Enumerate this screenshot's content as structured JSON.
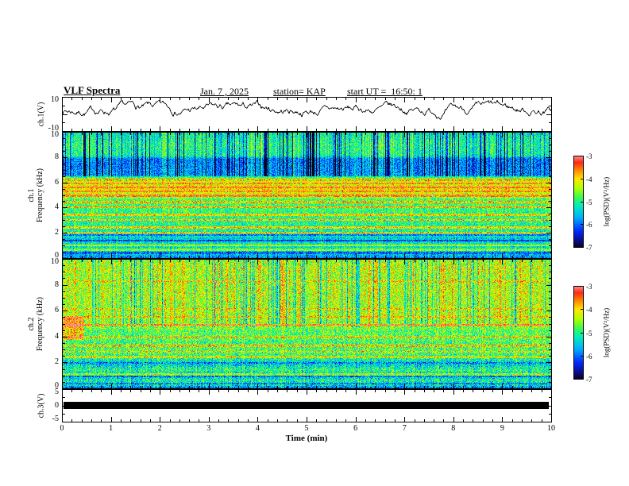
{
  "header": {
    "title": "VLF Spectra",
    "date": "Jan. 7 , 2025",
    "station": "station= KAP",
    "start_ut": "start UT =  16:50: 1"
  },
  "labels": {
    "ch1_voltage": "ch.1(V)",
    "ch1_channel": "ch.1",
    "ch2_channel": "ch.2",
    "frequency": "Frequency (kHz)",
    "ch3_voltage": "ch.3(V)",
    "time_axis": "Time (min)",
    "colorbar": "log(PSD)(V²/Hz)"
  },
  "axes": {
    "x_tick_labels": [
      "0",
      "1",
      "2",
      "3",
      "4",
      "5",
      "6",
      "7",
      "8",
      "9",
      "10"
    ],
    "wave1_tick_labels": [
      {
        "v": 10,
        "t": "10"
      },
      {
        "v": -10,
        "t": "-10"
      }
    ],
    "spec_tick_labels": [
      {
        "v": 10,
        "t": "10"
      },
      {
        "v": 8,
        "t": "8"
      },
      {
        "v": 6,
        "t": "6"
      },
      {
        "v": 4,
        "t": "4"
      },
      {
        "v": 2,
        "t": "2"
      },
      {
        "v": 0,
        "t": "0"
      }
    ],
    "wave3_tick_labels": [
      {
        "v": 5,
        "t": "5"
      },
      {
        "v": 0,
        "t": "0"
      },
      {
        "v": -5,
        "t": "-5"
      }
    ],
    "colorbar_tick_labels": [
      {
        "v": -3,
        "t": "-3"
      },
      {
        "v": -4,
        "t": "-4"
      },
      {
        "v": -5,
        "t": "-5"
      },
      {
        "v": -6,
        "t": "-6"
      },
      {
        "v": -7,
        "t": "-7"
      }
    ]
  },
  "colors": {
    "foreground": "#000000",
    "background": "#ffffff",
    "colormap_low": "#050519",
    "colormap_mid": "#1efa50",
    "colormap_high": "#ff8c8c"
  },
  "chart_data": [
    {
      "type": "line",
      "name": "ch1_voltage_waveform",
      "ylabel": "ch.1(V)",
      "xlim": [
        0,
        10
      ],
      "ylim": [
        -10,
        10
      ],
      "y_ticks": [
        {
          "v": 10,
          "major": true
        },
        {
          "v": 5
        },
        {
          "v": 0,
          "major": true
        },
        {
          "v": -5
        },
        {
          "v": -10,
          "major": true
        }
      ],
      "signal": {
        "seed": 7,
        "mean": 2.2,
        "spread": 2.6,
        "clamp": [
          -5,
          8
        ]
      },
      "description": "Noisy broadband voltage trace fluctuating around +2 V over the 10 minute record"
    },
    {
      "type": "heatmap",
      "name": "ch1_spectrogram",
      "ylabel": "ch.1 Frequency (kHz)",
      "xlim": [
        0,
        10
      ],
      "ylim": [
        0,
        10
      ],
      "value_range": [
        -7,
        -3
      ],
      "y_minor_step": 0.5,
      "y_major_step": 2,
      "seed": 42,
      "noise": 0.55,
      "band_profile": [
        [
          0,
          -6.4
        ],
        [
          0.2,
          -5.7
        ],
        [
          0.8,
          -5.3
        ],
        [
          1.2,
          -5.2
        ],
        [
          1.6,
          -5.5
        ],
        [
          2,
          -5.15
        ],
        [
          3,
          -5.0
        ],
        [
          4,
          -4.9
        ],
        [
          4.7,
          -4.85
        ],
        [
          5,
          -4.3
        ],
        [
          5.6,
          -4.0
        ],
        [
          6.1,
          -4.3
        ],
        [
          6.45,
          -4.9
        ],
        [
          6.6,
          -5.8
        ],
        [
          7.9,
          -5.9
        ],
        [
          8.15,
          -5.1
        ],
        [
          9,
          -5.0
        ],
        [
          10,
          -5.25
        ]
      ],
      "bright_lines": [
        {
          "f": 0.75,
          "v": -4.6
        },
        {
          "f": 1.1,
          "v": -4.4
        },
        {
          "f": 2.1,
          "v": -3.9
        },
        {
          "f": 2.5,
          "v": -4.0
        },
        {
          "f": 3.1,
          "v": -3.9
        },
        {
          "f": 3.5,
          "v": -4.0
        },
        {
          "f": 4.1,
          "v": -3.8
        },
        {
          "f": 4.5,
          "v": -3.9
        },
        {
          "f": 5.0,
          "v": -3.5
        },
        {
          "f": 5.35,
          "v": -3.6
        },
        {
          "f": 5.65,
          "v": -3.4
        },
        {
          "f": 5.95,
          "v": -3.6
        },
        {
          "f": 6.25,
          "v": -3.9
        }
      ],
      "dark_lines": [
        {
          "f": 0.5,
          "v": -6.0
        },
        {
          "f": 1.45,
          "v": -6.2
        },
        {
          "f": 1.9,
          "v": -5.9
        }
      ],
      "streak_zone": [
        6.55,
        10
      ],
      "streak_amp": 1.0,
      "colorbar": {
        "label": "log(PSD)(V²/Hz)",
        "ticks": [
          -3,
          -4,
          -5,
          -6,
          -7
        ],
        "range": [
          -3,
          -7
        ]
      }
    },
    {
      "type": "heatmap",
      "name": "ch2_spectrogram",
      "ylabel": "ch.2 Frequency (kHz)",
      "xlim": [
        0,
        10
      ],
      "ylim": [
        0,
        10
      ],
      "value_range": [
        -7,
        -3
      ],
      "y_minor_step": 0.5,
      "y_major_step": 2,
      "seed": 1337,
      "noise": 0.7,
      "band_profile": [
        [
          0,
          -6.4
        ],
        [
          0.3,
          -5.4
        ],
        [
          0.7,
          -5.1
        ],
        [
          1,
          -5.5
        ],
        [
          1.5,
          -5.0
        ],
        [
          2,
          -5.5
        ],
        [
          2.4,
          -5.0
        ],
        [
          3,
          -4.8
        ],
        [
          3.6,
          -4.9
        ],
        [
          4,
          -4.7
        ],
        [
          4.5,
          -4.8
        ],
        [
          4.9,
          -4.35
        ],
        [
          5.2,
          -4.45
        ],
        [
          5.6,
          -4.3
        ],
        [
          6.5,
          -4.4
        ],
        [
          7.5,
          -4.3
        ],
        [
          8.5,
          -4.4
        ],
        [
          9.2,
          -4.25
        ],
        [
          10,
          -4.45
        ]
      ],
      "bright_lines": [
        {
          "f": 1.15,
          "v": -4.5
        },
        {
          "f": 2.5,
          "v": -4.2
        },
        {
          "f": 2.9,
          "v": -4.1
        },
        {
          "f": 3.35,
          "v": -3.9
        },
        {
          "f": 4.0,
          "v": -3.9
        },
        {
          "f": 4.95,
          "v": -3.35
        },
        {
          "f": 5.6,
          "v": -3.9
        },
        {
          "f": 6.2,
          "v": -4.0
        },
        {
          "f": 8.3,
          "v": -4.0
        }
      ],
      "dark_lines": [
        {
          "f": 0.45,
          "v": -5.8
        },
        {
          "f": 1.0,
          "v": -5.9
        },
        {
          "f": 2.05,
          "v": -5.8
        }
      ],
      "streak_zone": [
        4.8,
        10
      ],
      "streak_amp": 0.7,
      "hotspot": {
        "x": [
          0,
          0.45
        ],
        "f": [
          3.8,
          5.6
        ],
        "boost": 1.15
      },
      "colorbar": {
        "label": "log(PSD)(V²/Hz)",
        "ticks": [
          -3,
          -4,
          -5,
          -6,
          -7
        ],
        "range": [
          -3,
          -7
        ]
      }
    },
    {
      "type": "line",
      "name": "ch3_voltage_waveform",
      "ylabel": "ch.3(V)",
      "xlim": [
        0,
        10
      ],
      "ylim": [
        -5,
        5
      ],
      "y_ticks": [
        {
          "v": 5,
          "major": true
        },
        {
          "v": 2.5
        },
        {
          "v": 0,
          "major": true
        },
        {
          "v": -2.5
        },
        {
          "v": -5,
          "major": true
        }
      ],
      "bar": {
        "center": 0,
        "half_amplitude": 1.05
      },
      "description": "Flat/saturated channel rendered as a solid black bar at 0 V across the whole record"
    }
  ]
}
